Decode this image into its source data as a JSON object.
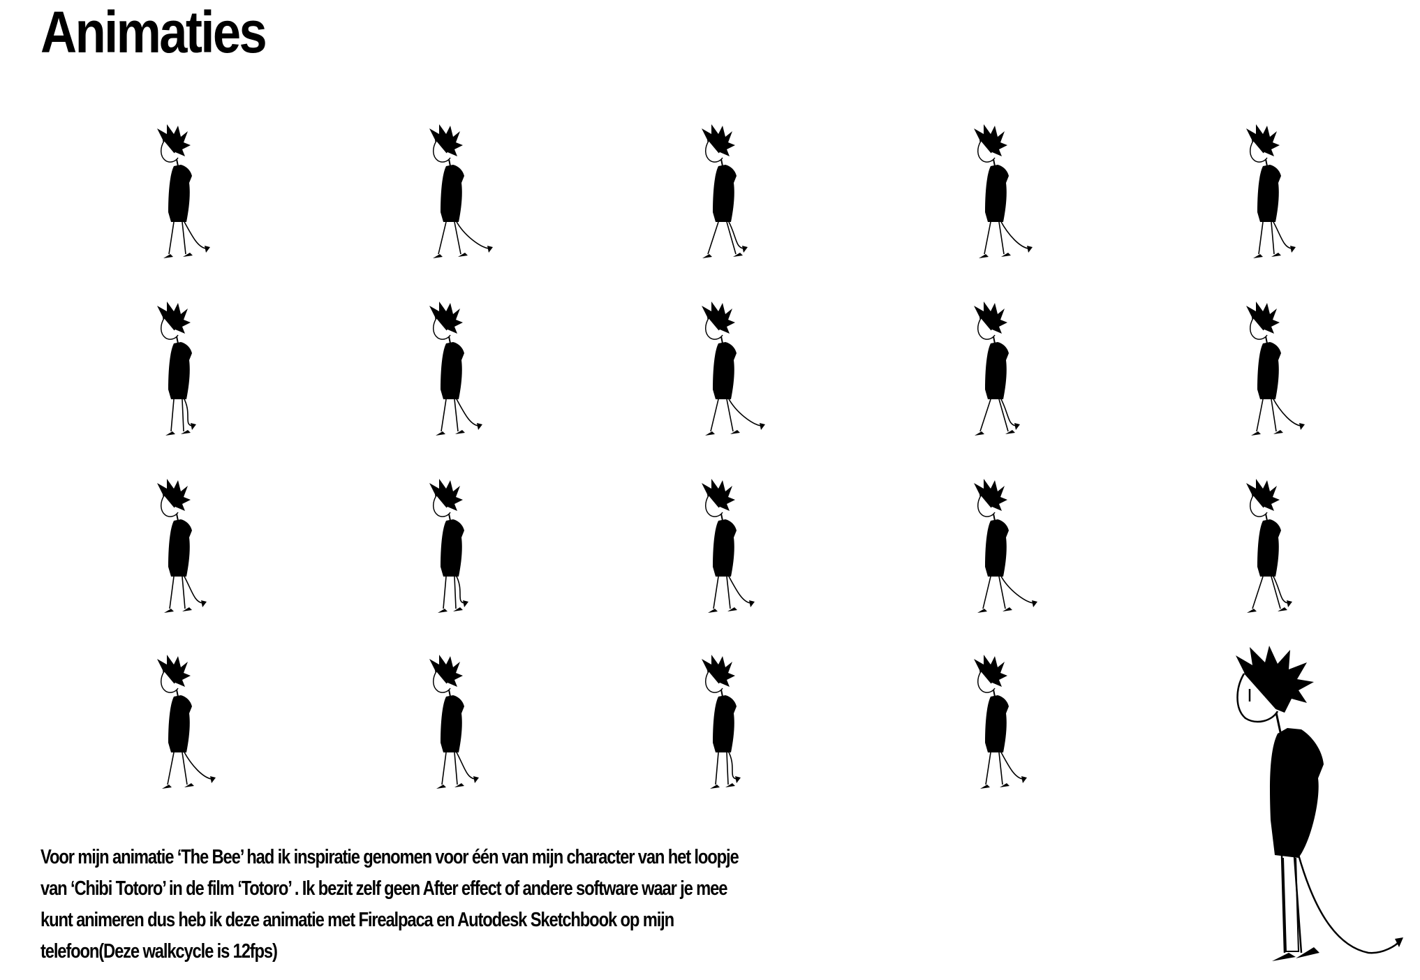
{
  "page": {
    "title": "Animaties",
    "description": "Voor mijn animatie ‘The Bee’  had ik inspiratie genomen voor één van mijn character van het loopje van ‘Chibi Totoro’ in de film ‘Totoro’ . Ik bezit zelf geen After effect of andere software waar je mee kunt animeren dus heb ik deze animatie met Firealpaca en Autodesk Sketchbook op mijn telefoon(Deze walkcycle is 12fps)"
  },
  "frames": {
    "rows": 4,
    "columns": 5,
    "count": 19,
    "icon": "walk-cycle-frame-drawing"
  },
  "large_figure": {
    "icon": "character-drawing-large"
  },
  "colors": {
    "ink": "#000000",
    "paper": "#ffffff"
  }
}
